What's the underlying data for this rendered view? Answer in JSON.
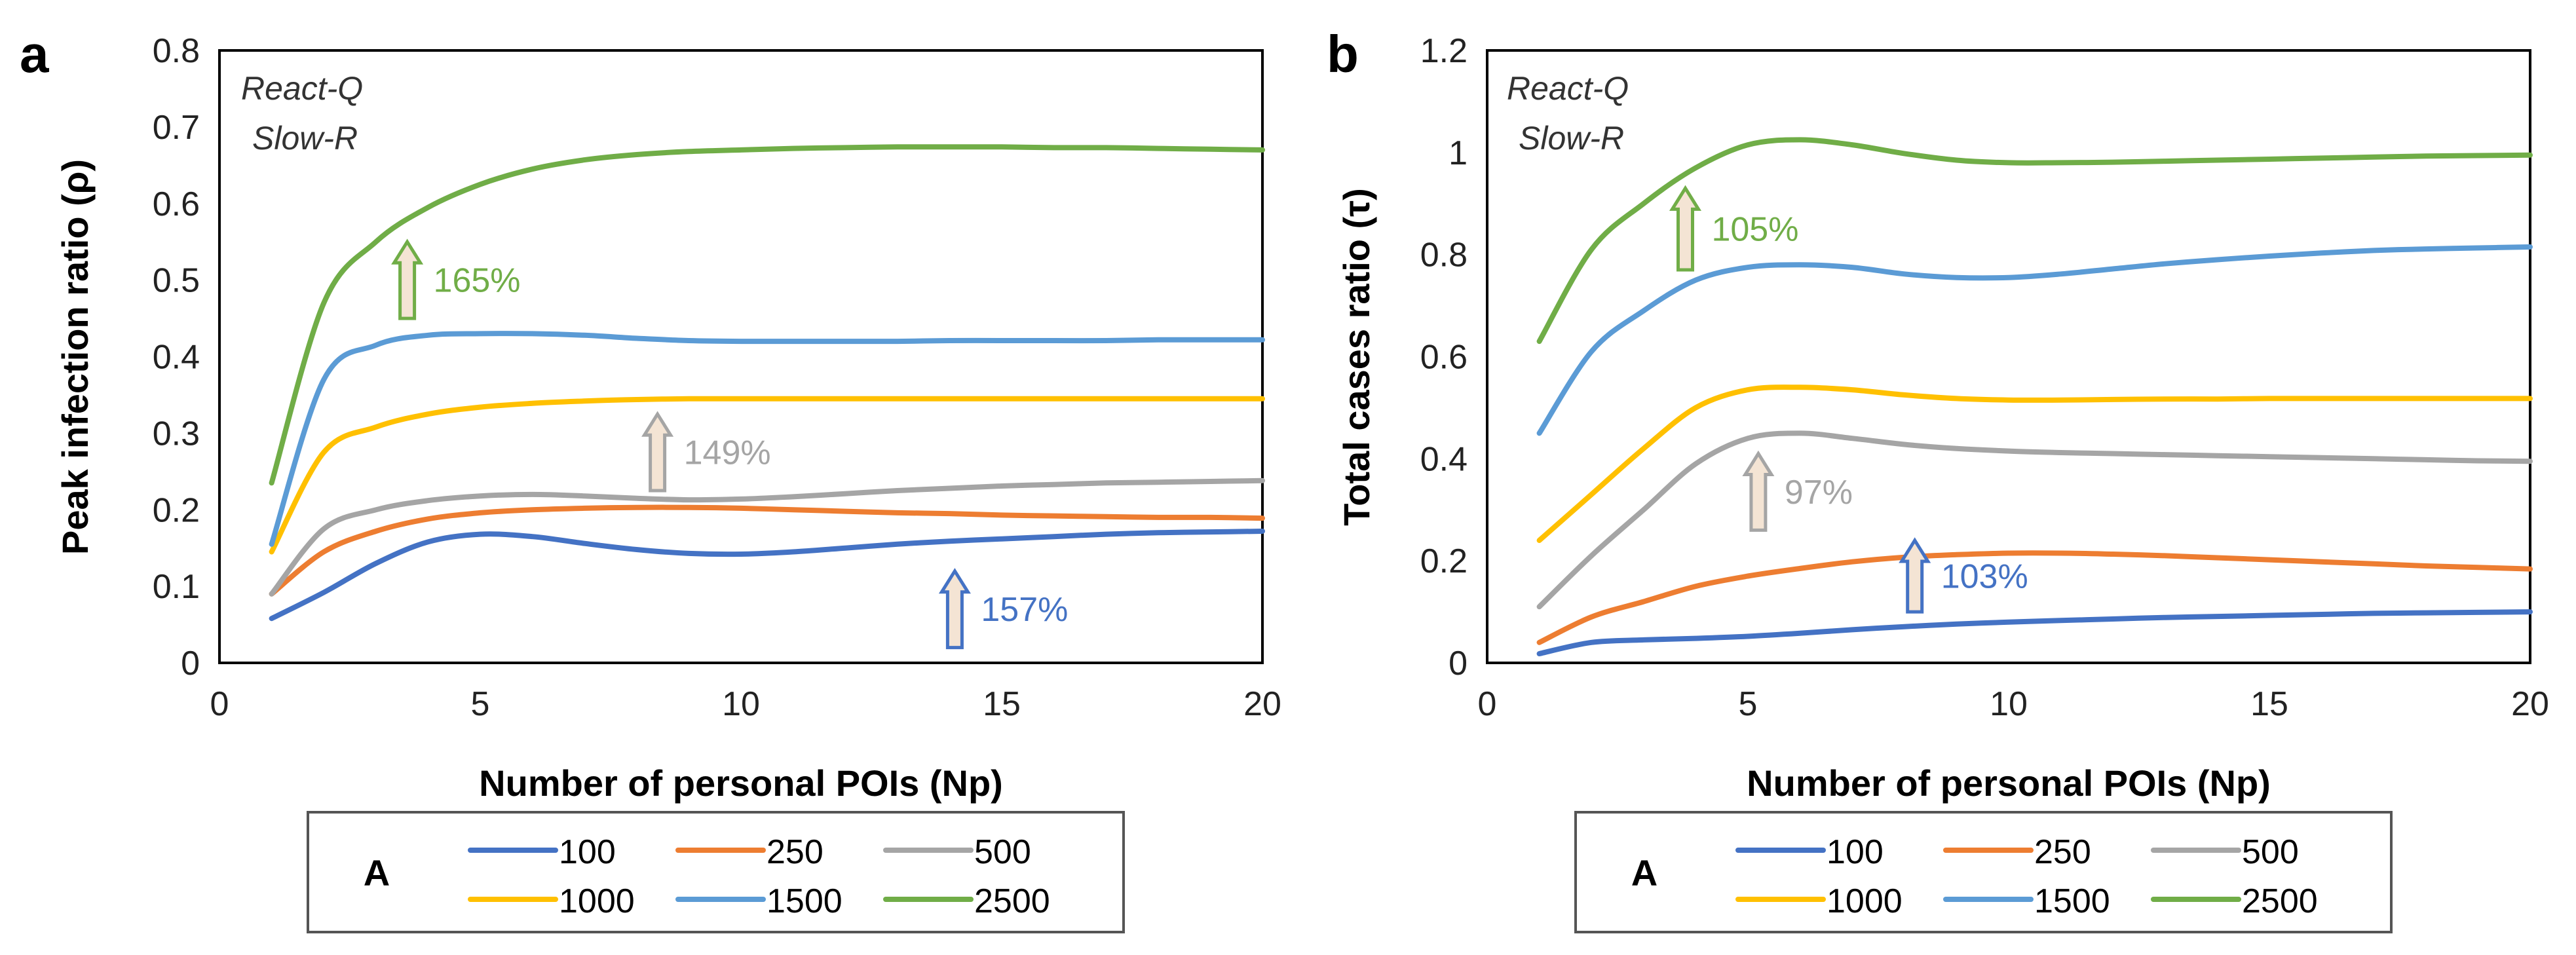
{
  "legend": {
    "title": "A",
    "entries": [
      "100",
      "250",
      "500",
      "1000",
      "1500",
      "2500"
    ]
  },
  "colors": {
    "100": "#4472c4",
    "250": "#ed7d31",
    "500": "#a5a5a5",
    "1000": "#ffc000",
    "1500": "#5b9bd5",
    "2500": "#70ad47",
    "arrow_fill": "#f4e4d4"
  },
  "chart_data": [
    {
      "panel_label": "a",
      "type": "line",
      "title": "",
      "xlabel": "Number of personal POIs (Np)",
      "ylabel": "Peak infection ratio (ρ)",
      "xlim": [
        0,
        20
      ],
      "ylim": [
        0,
        0.8
      ],
      "xticks": [
        "0",
        "5",
        "10",
        "15",
        "20"
      ],
      "yticks": [
        "0",
        "0.1",
        "0.2",
        "0.3",
        "0.4",
        "0.5",
        "0.6",
        "0.7",
        "0.8"
      ],
      "annotation_lines": [
        "React-Q",
        "Slow-R"
      ],
      "x": [
        1,
        2,
        3,
        4,
        5,
        6,
        7,
        8,
        9,
        10,
        11,
        12,
        13,
        14,
        15,
        16,
        17,
        18,
        19,
        20
      ],
      "series": [
        {
          "name": "100",
          "values": [
            0.058,
            0.092,
            0.13,
            0.158,
            0.168,
            0.165,
            0.156,
            0.148,
            0.143,
            0.142,
            0.145,
            0.15,
            0.155,
            0.159,
            0.162,
            0.165,
            0.168,
            0.17,
            0.171,
            0.172
          ]
        },
        {
          "name": "250",
          "values": [
            0.09,
            0.145,
            0.172,
            0.188,
            0.196,
            0.2,
            0.202,
            0.203,
            0.203,
            0.202,
            0.2,
            0.198,
            0.196,
            0.195,
            0.193,
            0.192,
            0.191,
            0.19,
            0.19,
            0.189
          ]
        },
        {
          "name": "500",
          "values": [
            0.09,
            0.175,
            0.2,
            0.212,
            0.218,
            0.22,
            0.218,
            0.215,
            0.213,
            0.214,
            0.217,
            0.221,
            0.225,
            0.228,
            0.231,
            0.233,
            0.235,
            0.236,
            0.237,
            0.238
          ]
        },
        {
          "name": "1000",
          "values": [
            0.145,
            0.275,
            0.308,
            0.325,
            0.334,
            0.339,
            0.342,
            0.344,
            0.345,
            0.345,
            0.345,
            0.345,
            0.345,
            0.345,
            0.345,
            0.345,
            0.345,
            0.345,
            0.345,
            0.345
          ]
        },
        {
          "name": "1500",
          "values": [
            0.155,
            0.37,
            0.415,
            0.428,
            0.43,
            0.43,
            0.428,
            0.424,
            0.421,
            0.42,
            0.42,
            0.42,
            0.42,
            0.421,
            0.421,
            0.421,
            0.421,
            0.422,
            0.422,
            0.422
          ]
        },
        {
          "name": "2500",
          "values": [
            0.235,
            0.47,
            0.55,
            0.595,
            0.625,
            0.645,
            0.657,
            0.664,
            0.668,
            0.67,
            0.672,
            0.673,
            0.674,
            0.674,
            0.674,
            0.673,
            0.673,
            0.672,
            0.671,
            0.67
          ]
        }
      ],
      "arrows": [
        {
          "label": "165%",
          "series": "2500",
          "x": 3.6,
          "y0": 0.45,
          "y1": 0.55
        },
        {
          "label": "149%",
          "series": "500",
          "x": 8.4,
          "y0": 0.225,
          "y1": 0.325
        },
        {
          "label": "157%",
          "series": "100",
          "x": 14.1,
          "y0": 0.02,
          "y1": 0.12
        }
      ]
    },
    {
      "panel_label": "b",
      "type": "line",
      "title": "",
      "xlabel": "Number of personal POIs (Np)",
      "ylabel": "Total cases ratio (τ)",
      "xlim": [
        0,
        20
      ],
      "ylim": [
        0,
        1.2
      ],
      "xticks": [
        "0",
        "5",
        "10",
        "15",
        "20"
      ],
      "yticks": [
        "0",
        "0.2",
        "0.4",
        "0.6",
        "0.8",
        "1",
        "1.2"
      ],
      "annotation_lines": [
        "React-Q",
        "Slow-R"
      ],
      "x": [
        1,
        2,
        3,
        4,
        5,
        6,
        7,
        8,
        9,
        10,
        11,
        12,
        13,
        14,
        15,
        16,
        17,
        18,
        19,
        20
      ],
      "series": [
        {
          "name": "100",
          "values": [
            0.018,
            0.04,
            0.045,
            0.048,
            0.052,
            0.058,
            0.065,
            0.071,
            0.076,
            0.08,
            0.083,
            0.086,
            0.089,
            0.091,
            0.093,
            0.095,
            0.097,
            0.098,
            0.099,
            0.1
          ]
        },
        {
          "name": "250",
          "values": [
            0.04,
            0.09,
            0.12,
            0.15,
            0.17,
            0.185,
            0.198,
            0.207,
            0.212,
            0.215,
            0.215,
            0.213,
            0.21,
            0.206,
            0.202,
            0.198,
            0.194,
            0.19,
            0.187,
            0.184
          ]
        },
        {
          "name": "500",
          "values": [
            0.11,
            0.21,
            0.3,
            0.39,
            0.44,
            0.45,
            0.44,
            0.428,
            0.42,
            0.415,
            0.412,
            0.41,
            0.408,
            0.406,
            0.404,
            0.402,
            0.4,
            0.398,
            0.396,
            0.395
          ]
        },
        {
          "name": "1000",
          "values": [
            0.24,
            0.33,
            0.42,
            0.5,
            0.535,
            0.54,
            0.535,
            0.525,
            0.518,
            0.515,
            0.515,
            0.516,
            0.517,
            0.517,
            0.518,
            0.518,
            0.518,
            0.518,
            0.518,
            0.518
          ]
        },
        {
          "name": "1500",
          "values": [
            0.45,
            0.61,
            0.69,
            0.75,
            0.775,
            0.78,
            0.775,
            0.762,
            0.755,
            0.755,
            0.762,
            0.772,
            0.782,
            0.79,
            0.797,
            0.803,
            0.808,
            0.811,
            0.813,
            0.815
          ]
        },
        {
          "name": "2500",
          "values": [
            0.63,
            0.81,
            0.9,
            0.97,
            1.015,
            1.025,
            1.015,
            0.998,
            0.985,
            0.98,
            0.98,
            0.981,
            0.983,
            0.985,
            0.987,
            0.989,
            0.991,
            0.993,
            0.994,
            0.995
          ]
        }
      ],
      "arrows": [
        {
          "label": "105%",
          "series": "2500",
          "x": 3.8,
          "y0": 0.77,
          "y1": 0.93
        },
        {
          "label": "97%",
          "series": "500",
          "x": 5.2,
          "y0": 0.26,
          "y1": 0.41
        },
        {
          "label": "103%",
          "series": "100",
          "x": 8.2,
          "y0": 0.1,
          "y1": 0.24
        }
      ]
    }
  ]
}
